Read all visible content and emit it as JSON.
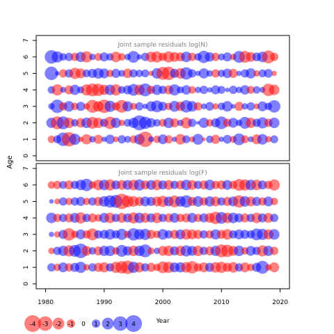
{
  "chart_data": [
    {
      "type": "scatter",
      "title": "Joint sample residuals log(N)",
      "xlabel": "",
      "ylabel": "",
      "xlim": [
        1978.4,
        2021.6
      ],
      "ylim": [
        -0.3,
        7.3
      ],
      "x_ticks": [],
      "y_ticks": [
        0,
        1,
        2,
        3,
        4,
        5,
        6,
        7
      ],
      "years": [
        1981,
        1982,
        1983,
        1984,
        1985,
        1986,
        1987,
        1988,
        1989,
        1990,
        1991,
        1992,
        1993,
        1994,
        1995,
        1996,
        1997,
        1998,
        1999,
        2000,
        2001,
        2002,
        2003,
        2004,
        2005,
        2006,
        2007,
        2008,
        2009,
        2010,
        2011,
        2012,
        2013,
        2014,
        2015,
        2016,
        2017,
        2018,
        2019
      ],
      "ages": [
        1,
        2,
        3,
        4,
        5,
        6
      ],
      "residuals": [
        [
          -0.8,
          0.9,
          2.6,
          -3.0,
          1.8,
          -0.4,
          -1.5,
          0.6,
          -1.2,
          0.4,
          1.3,
          -0.5,
          1.0,
          0.7,
          -0.9,
          1.6,
          -3.4,
          0.5,
          -0.8,
          1.4,
          -1.0,
          0.4,
          -1.6,
          0.9,
          -0.5,
          1.7,
          -0.2,
          0.8,
          -1.2,
          0.4,
          1.1,
          -0.7,
          2.0,
          -0.9,
          0.5,
          -1.4,
          1.6,
          -0.6,
          0.9
        ],
        [
          1.5,
          -2.4,
          2.4,
          -1.6,
          0.8,
          -1.3,
          1.6,
          -2.0,
          -1.6,
          1.0,
          -2.2,
          1.5,
          -0.6,
          0.9,
          1.5,
          3.2,
          2.2,
          1.3,
          0.8,
          -0.9,
          1.6,
          -1.2,
          0.6,
          -1.8,
          1.0,
          0.2,
          1.5,
          -0.8,
          1.2,
          2.3,
          -1.0,
          1.4,
          0.6,
          2.0,
          -1.5,
          1.0,
          1.8,
          -1.0,
          1.6
        ],
        [
          0.6,
          2.6,
          -1.0,
          1.6,
          -0.8,
          1.2,
          -0.6,
          -2.4,
          -1.6,
          -2.6,
          1.8,
          -1.0,
          -2.3,
          1.5,
          -0.7,
          1.0,
          0.4,
          1.5,
          2.0,
          1.2,
          -0.8,
          1.7,
          -1.3,
          2.2,
          1.6,
          -1.0,
          0.5,
          1.1,
          -0.6,
          0.8,
          1.6,
          0.3,
          -1.2,
          0.6,
          1.0,
          -0.5,
          1.4,
          0.8,
          2.2
        ],
        [
          0.8,
          -1.8,
          0.5,
          -1.2,
          1.5,
          0.7,
          -1.8,
          -2.4,
          -2.2,
          -1.5,
          1.6,
          -1.8,
          0.8,
          1.2,
          2.0,
          -1.6,
          2.4,
          -1.0,
          1.5,
          1.0,
          -1.2,
          1.8,
          0.7,
          1.3,
          -0.8,
          0.6,
          1.0,
          0.4,
          1.2,
          0.9,
          0.3,
          1.0,
          0.6,
          1.3,
          -0.9,
          0.8,
          0.5,
          -2.2,
          -1.6
        ],
        [
          2.6,
          0.3,
          -1.0,
          1.0,
          -1.8,
          -1.4,
          0.9,
          1.2,
          1.6,
          1.4,
          -0.8,
          1.2,
          0.7,
          -1.3,
          1.0,
          0.8,
          0.9,
          -0.4,
          1.6,
          -2.4,
          -2.6,
          1.2,
          -1.6,
          2.2,
          1.0,
          0.4,
          1.5,
          0.6,
          -1.0,
          0.8,
          1.3,
          -1.2,
          0.4,
          1.0,
          1.5,
          -0.6,
          0.9,
          1.1,
          -0.4
        ],
        [
          2.6,
          1.8,
          0.8,
          1.0,
          -1.0,
          1.5,
          -1.8,
          0.6,
          -0.9,
          1.2,
          0.8,
          -1.6,
          -0.8,
          0.6,
          2.0,
          0.4,
          1.0,
          -1.6,
          -1.8,
          -1.0,
          -1.8,
          -1.4,
          -1.2,
          1.6,
          -1.0,
          0.8,
          2.2,
          1.3,
          -1.0,
          0.7,
          1.2,
          -0.6,
          2.0,
          -2.0,
          -1.4,
          1.1,
          1.6,
          -2.4,
          -1.0
        ]
      ]
    },
    {
      "type": "scatter",
      "title": "Joint sample residuals log(F)",
      "xlabel": "Year",
      "ylabel": "",
      "xlim": [
        1978.4,
        2021.6
      ],
      "ylim": [
        -0.3,
        7.3
      ],
      "x_ticks": [
        1980,
        1990,
        2000,
        2010,
        2020
      ],
      "y_ticks": [
        0,
        1,
        2,
        3,
        4,
        5,
        6,
        7
      ],
      "years": [
        1981,
        1982,
        1983,
        1984,
        1985,
        1986,
        1987,
        1988,
        1989,
        1990,
        1991,
        1992,
        1993,
        1994,
        1995,
        1996,
        1997,
        1998,
        1999,
        2000,
        2001,
        2002,
        2003,
        2004,
        2005,
        2006,
        2007,
        2008,
        2009,
        2010,
        2011,
        2012,
        2013,
        2014,
        2015,
        2016,
        2017,
        2018,
        2019
      ],
      "ages": [
        1,
        2,
        3,
        4,
        5,
        6
      ],
      "residuals": [
        [
          1.0,
          -0.8,
          1.4,
          -1.0,
          1.2,
          1.8,
          -0.6,
          1.0,
          -1.2,
          -1.5,
          1.0,
          -1.8,
          -2.2,
          -2.6,
          1.8,
          -1.5,
          1.0,
          -1.2,
          -0.8,
          -2.0,
          -1.8,
          1.4,
          1.5,
          -1.6,
          -2.2,
          -1.0,
          -1.4,
          1.2,
          -1.6,
          -1.8,
          -1.2,
          -1.6,
          1.0,
          -1.4,
          -0.8,
          1.2,
          2.4,
          -0.6,
          -1.4
        ],
        [
          -0.6,
          1.0,
          1.5,
          -1.8,
          2.0,
          3.0,
          -1.4,
          0.8,
          -1.2,
          1.5,
          1.6,
          -0.8,
          2.0,
          1.3,
          -1.6,
          1.6,
          2.4,
          -0.7,
          0.6,
          -1.4,
          -1.6,
          1.2,
          -1.5,
          1.8,
          1.4,
          -1.6,
          1.0,
          -1.2,
          1.5,
          -2.4,
          -2.2,
          -1.4,
          1.6,
          -0.8,
          1.4,
          1.0,
          -1.8,
          1.5,
          -1.0
        ],
        [
          0.4,
          -0.6,
          1.2,
          -2.2,
          -0.8,
          1.4,
          -1.0,
          -2.0,
          1.0,
          1.2,
          1.6,
          1.0,
          1.8,
          -0.8,
          2.2,
          1.6,
          1.8,
          -1.2,
          -0.8,
          1.6,
          1.0,
          -1.2,
          1.4,
          -1.6,
          -1.4,
          -1.2,
          1.0,
          -1.0,
          1.5,
          -1.2,
          -1.6,
          1.0,
          1.4,
          1.2,
          1.0,
          2.0,
          1.8,
          -1.5,
          1.6
        ],
        [
          1.6,
          -1.0,
          1.0,
          -1.2,
          1.4,
          -1.8,
          1.0,
          -1.2,
          -0.8,
          1.4,
          -1.6,
          1.0,
          -1.4,
          1.2,
          -1.8,
          1.6,
          -1.4,
          1.2,
          -1.6,
          1.0,
          -1.2,
          1.4,
          -1.0,
          -1.2,
          1.4,
          -1.0,
          1.2,
          -1.4,
          -2.2,
          2.0,
          -1.6,
          1.6,
          1.2,
          -1.2,
          1.0,
          -1.6,
          1.2,
          -1.4,
          1.0
        ],
        [
          0.3,
          -0.5,
          1.0,
          -0.8,
          1.0,
          1.2,
          -0.8,
          1.0,
          -1.2,
          1.6,
          2.2,
          2.4,
          -3.4,
          -2.0,
          -1.6,
          -1.2,
          1.4,
          1.2,
          -1.4,
          -1.8,
          1.4,
          -2.0,
          1.6,
          2.2,
          -1.2,
          1.6,
          -1.0,
          1.5,
          -1.4,
          1.0,
          -1.2,
          1.4,
          -2.2,
          1.6,
          -1.4,
          1.2,
          -1.0,
          1.4,
          -0.8
        ],
        [
          -0.8,
          -1.0,
          0.9,
          -1.2,
          1.0,
          1.6,
          2.2,
          -0.8,
          -1.6,
          1.6,
          -1.8,
          1.2,
          -1.4,
          1.4,
          -1.6,
          1.8,
          -1.2,
          1.4,
          -1.6,
          1.2,
          -1.4,
          1.0,
          -1.2,
          1.6,
          -1.4,
          1.0,
          -1.2,
          1.6,
          -1.0,
          -1.2,
          1.4,
          -1.0,
          -2.0,
          -1.8,
          1.6,
          -1.6,
          1.2,
          -1.0,
          -1.8
        ]
      ]
    }
  ],
  "y_axis_label": "Age",
  "legend": {
    "values": [
      -4,
      -3,
      -2,
      -1,
      0,
      1,
      2,
      3,
      4
    ],
    "labels": [
      "-4",
      "-3",
      "-2",
      "-1",
      "0",
      "1",
      "2",
      "3",
      "4"
    ]
  },
  "colors": {
    "negative": "#ff0000",
    "positive": "#0000ff",
    "frame": "#000000",
    "title": "#808080"
  }
}
